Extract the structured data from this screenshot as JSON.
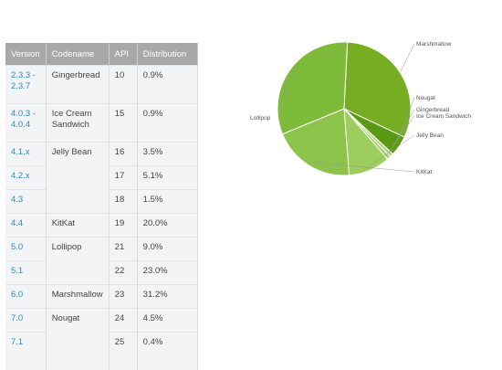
{
  "table": {
    "headers": [
      "Version",
      "Codename",
      "API",
      "Distribution"
    ],
    "rows": [
      {
        "version": "2.3.3 -\n2.3.7",
        "codename": "Gingerbread",
        "api": "10",
        "dist": "0.9%"
      },
      {
        "version": "4.0.3 -\n4.0.4",
        "codename": "Ice Cream\nSandwich",
        "api": "15",
        "dist": "0.9%"
      },
      {
        "version": "4.1.x",
        "codename": "Jelly Bean",
        "api": "16",
        "dist": "3.5%"
      },
      {
        "version": "4.2.x",
        "codename": "",
        "api": "17",
        "dist": "5.1%"
      },
      {
        "version": "4.3",
        "codename": "",
        "api": "18",
        "dist": "1.5%"
      },
      {
        "version": "4.4",
        "codename": "KitKat",
        "api": "19",
        "dist": "20.0%"
      },
      {
        "version": "5.0",
        "codename": "Lollipop",
        "api": "21",
        "dist": "9.0%"
      },
      {
        "version": "5.1",
        "codename": "",
        "api": "22",
        "dist": "23.0%"
      },
      {
        "version": "6.0",
        "codename": "Marshmallow",
        "api": "23",
        "dist": "31.2%"
      },
      {
        "version": "7.0",
        "codename": "Nougat",
        "api": "24",
        "dist": "4.5%"
      },
      {
        "version": "7.1",
        "codename": "",
        "api": "25",
        "dist": "0.4%"
      }
    ]
  },
  "chart_data": {
    "type": "pie",
    "slices": [
      {
        "label": "Marshmallow",
        "value": 31.2,
        "color": "#77ad22"
      },
      {
        "label": "Nougat",
        "value": 4.9,
        "color": "#5a9a12"
      },
      {
        "label": "Gingerbread",
        "value": 0.9,
        "color": "#b4d87a"
      },
      {
        "label": "Ice Cream Sandwich",
        "value": 0.9,
        "color": "#a6d06a"
      },
      {
        "label": "Jelly Bean",
        "value": 10.1,
        "color": "#9ccd5d"
      },
      {
        "label": "KitKat",
        "value": 20.0,
        "color": "#8cc34b"
      },
      {
        "label": "Lollipop",
        "value": 32.0,
        "color": "#7fbb3b"
      }
    ]
  }
}
